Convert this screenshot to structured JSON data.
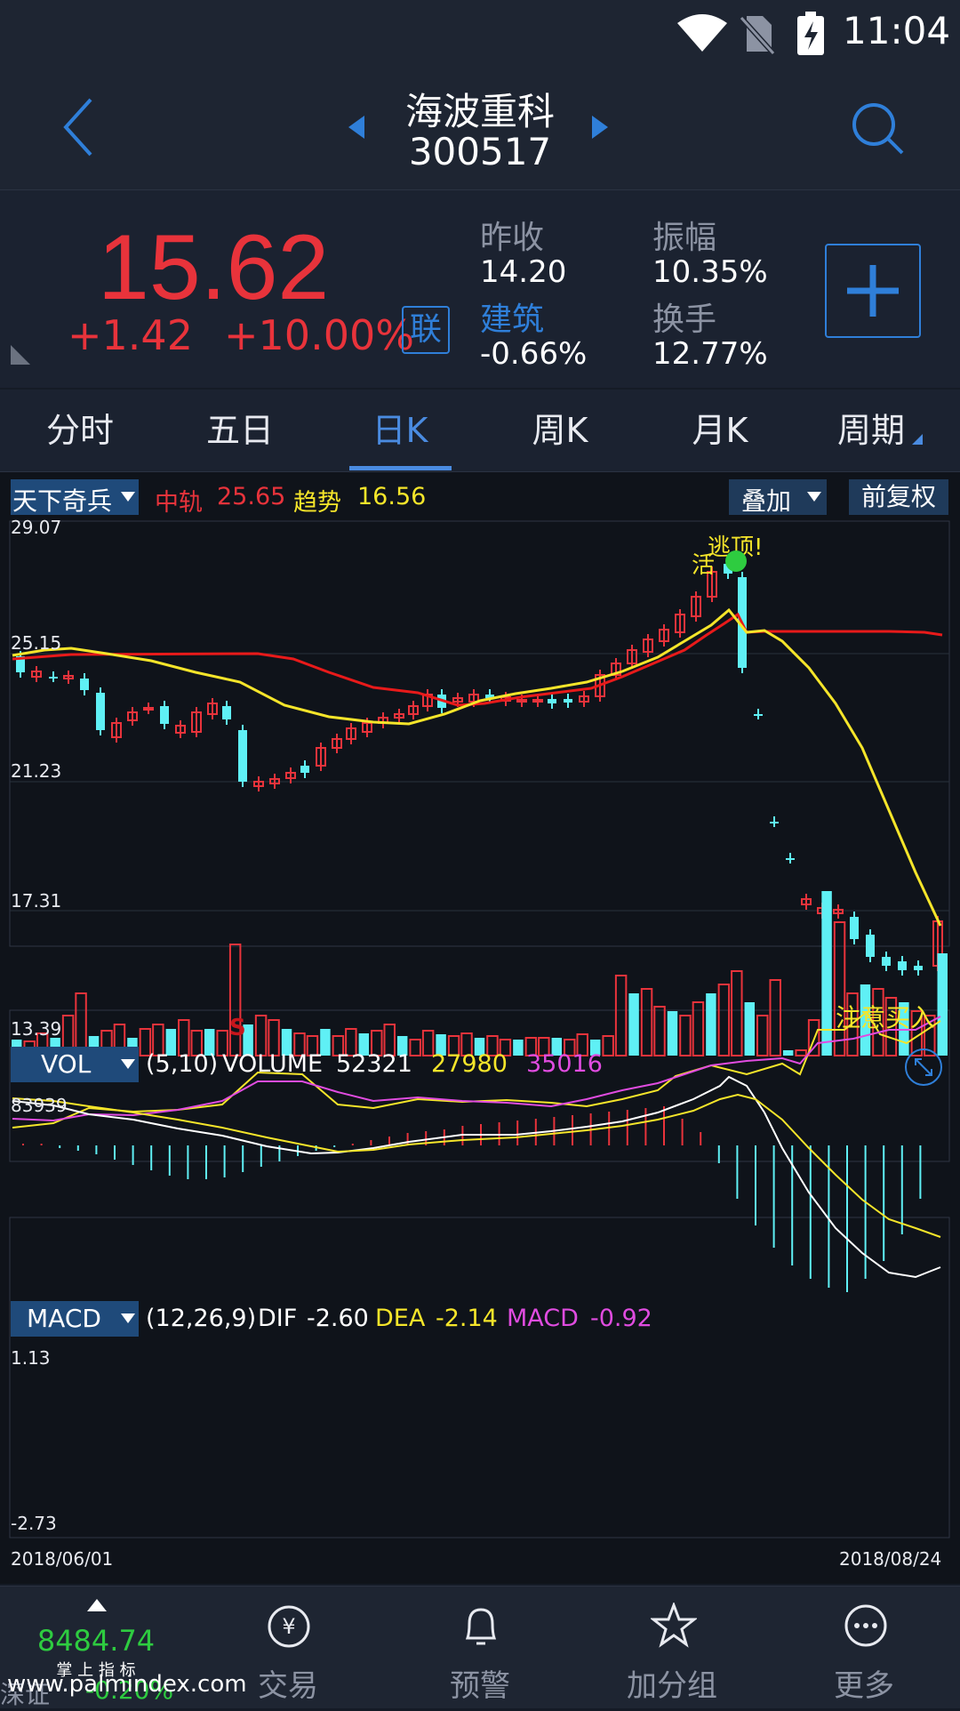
{
  "status": {
    "time": "11:04"
  },
  "header": {
    "name": "海波重科",
    "code": "300517"
  },
  "quote": {
    "price": "15.62",
    "change": "+1.42",
    "change_pct": "+10.00%",
    "lian_badge": "联",
    "prev_close_label": "昨收",
    "prev_close": "14.20",
    "amplitude_label": "振幅",
    "amplitude": "10.35%",
    "sector_label": "建筑",
    "sector_change": "-0.66%",
    "turnover_label": "换手",
    "turnover": "12.77%"
  },
  "tabs": [
    "分时",
    "五日",
    "日K",
    "周K",
    "月K",
    "周期"
  ],
  "kline": {
    "indicator": "天下奇兵",
    "mid_label": "中轨",
    "mid_value": "25.65",
    "trend_label": "趋势",
    "trend_value": "16.56",
    "overlay_button": "叠加",
    "adjust_button": "前复权",
    "y_labels": [
      "29.07",
      "25.15",
      "21.23",
      "17.31",
      "13.39"
    ],
    "annotation_top": "逃顶!",
    "annotation_top2": "活",
    "annotation_buy": "注意买入",
    "annotation_s": "S"
  },
  "vol": {
    "selector": "VOL",
    "params": "(5,10)",
    "label": "VOLUME",
    "v1": "52321",
    "v2": "27980",
    "v3": "35016",
    "max_label": "83939"
  },
  "macd": {
    "selector": "MACD",
    "params": "(12,26,9)",
    "dif_label": "DIF",
    "dif": "-2.60",
    "dea_label": "DEA",
    "dea": "-2.14",
    "macd_label": "MACD",
    "macd": "-0.92",
    "top_label": "1.13",
    "bottom_label": "-2.73"
  },
  "dates": {
    "start": "2018/06/01",
    "end": "2018/08/24"
  },
  "bottom_nav": {
    "index_value": "8484.74",
    "index_pct": "-0.20%",
    "index_name": "深证",
    "index_hint": "掌 上 指 标",
    "watermark": "www.palmindex.com",
    "items": [
      "交易",
      "预警",
      "加分组",
      "更多"
    ]
  },
  "colors": {
    "up": "#e8333b",
    "down": "#5ff0f5",
    "yellow": "#f5e52a",
    "magenta": "#e04ce0",
    "accent": "#2f7fd9"
  }
}
